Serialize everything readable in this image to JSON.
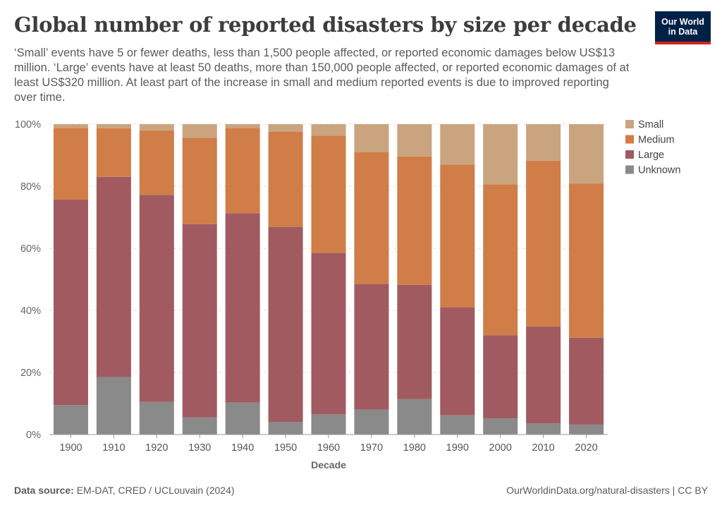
{
  "header": {
    "title": "Global number of reported disasters by size per decade",
    "subtitle": "‘Small’ events have 5 or fewer deaths, less than 1,500 people affected, or reported economic damages below US$13 million. ‘Large’ events have at least 50 deaths, more than 150,000 people affected, or reported economic damages of at least US$320 million. At least part of the increase in small and medium reported events is due to improved reporting over time."
  },
  "logo": {
    "line1": "Our World",
    "line2": "in Data"
  },
  "footer": {
    "source_label": "Data source:",
    "source_text": "EM-DAT, CRED / UCLouvain (2024)",
    "credit": "OurWorldinData.org/natural-disasters | CC BY"
  },
  "chart_data": {
    "type": "bar",
    "stacked": true,
    "normalized": true,
    "xlabel": "Decade",
    "ylabel": "",
    "ylim": [
      0,
      100
    ],
    "yticks": [
      "0%",
      "20%",
      "40%",
      "60%",
      "80%",
      "100%"
    ],
    "grid": "horizontal dashed",
    "legend_position": "right",
    "categories": [
      "1900",
      "1910",
      "1920",
      "1930",
      "1940",
      "1950",
      "1960",
      "1970",
      "1980",
      "1990",
      "2000",
      "2010",
      "2020"
    ],
    "series": [
      {
        "name": "Unknown",
        "color": "#8a8a8a",
        "values": [
          9.5,
          18.5,
          10.5,
          5.5,
          10.3,
          4.0,
          6.5,
          8.0,
          11.4,
          6.2,
          5.2,
          3.6,
          3.2
        ]
      },
      {
        "name": "Large",
        "color": "#a05a60",
        "values": [
          66.2,
          64.5,
          66.7,
          62.3,
          61.0,
          62.9,
          52.0,
          40.5,
          36.8,
          34.8,
          26.8,
          31.2,
          28.0
        ]
      },
      {
        "name": "Medium",
        "color": "#d07d48",
        "values": [
          23.1,
          15.7,
          20.8,
          27.8,
          27.5,
          30.6,
          37.8,
          42.5,
          41.4,
          46.0,
          48.6,
          53.4,
          49.6
        ]
      },
      {
        "name": "Small",
        "color": "#caa47e",
        "values": [
          1.2,
          1.3,
          2.0,
          4.4,
          1.2,
          2.5,
          3.7,
          9.0,
          10.4,
          13.0,
          19.4,
          11.8,
          19.2
        ]
      }
    ],
    "legend_order": [
      "Small",
      "Medium",
      "Large",
      "Unknown"
    ]
  }
}
